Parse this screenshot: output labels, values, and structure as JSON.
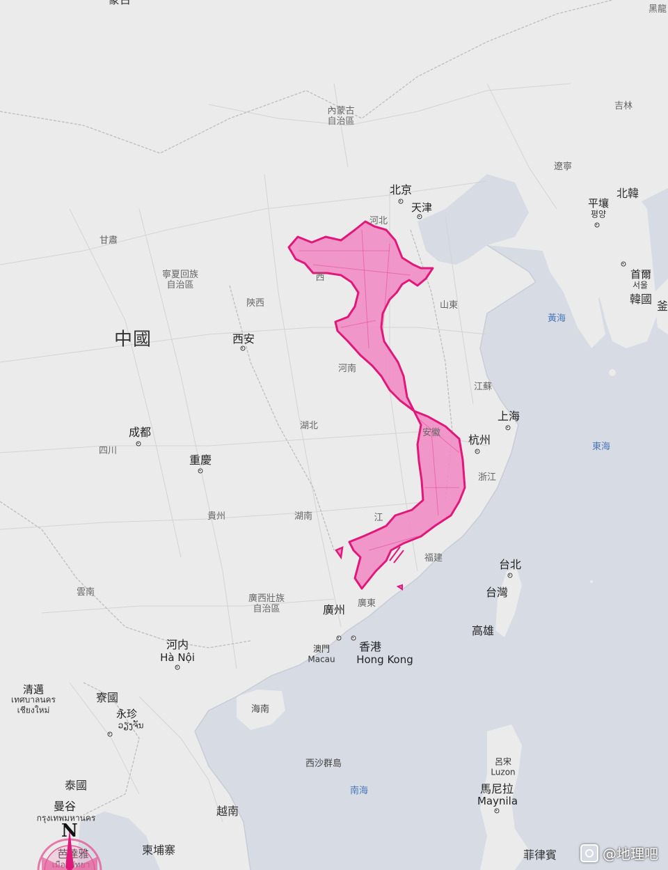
{
  "overlay": {
    "label": "Vietnam outline overlaid on China",
    "fill": "#f08ac4",
    "stroke": "#e0187a"
  },
  "colors": {
    "land": "#ebebeb",
    "sea": "#d6dbe4",
    "roads": "#cfcfcf",
    "borders": "#bdbdbd",
    "sea_label": "#4a79b8"
  },
  "labels": {
    "mongolia": "蒙古",
    "heilongjiang": "黑龍",
    "inner_mongolia_1": "內蒙古",
    "inner_mongolia_2": "自治區",
    "jilin": "吉林",
    "liaoning": "遼寧",
    "north_korea": "北韓",
    "pyongyang": "平壤",
    "pyongyang_kr": "평양",
    "seoul": "首爾",
    "seoul_kr": "서울",
    "south_korea": "韓國",
    "japan_partial": "釜",
    "gansu": "甘肅",
    "ningxia_1": "寧夏回族",
    "ningxia_2": "自治區",
    "shaanxi": "陝西",
    "china": "中國",
    "xian": "西安",
    "beijing": "北京",
    "tianjin": "天津",
    "hebei": "河北",
    "shanxi": "西",
    "shandong": "山東",
    "yellow_sea": "黃海",
    "henan": "河南",
    "jiangsu": "江蘇",
    "shanghai": "上海",
    "anhui": "安徽",
    "hangzhou": "杭州",
    "east_sea": "東海",
    "zhejiang": "浙江",
    "hubei": "湖北",
    "chengdu": "成都",
    "sichuan": "四川",
    "chongqing": "重慶",
    "guizhou": "貴州",
    "hunan": "湖南",
    "jiangxi": "江",
    "fujian": "福建",
    "taipei": "台北",
    "taiwan": "台灣",
    "kaohsiung": "高雄",
    "yunnan": "雲南",
    "guangxi_1": "廣西壯族",
    "guangxi_2": "自治區",
    "guangzhou": "廣州",
    "guangdong": "廣東",
    "macau_zh": "澳門",
    "macau_en": "Macau",
    "hongkong_zh": "香港",
    "hongkong_en": "Hong Kong",
    "hanoi_zh": "河内",
    "hanoi_vi": "Hà Nội",
    "hainan": "海南",
    "chiangmai_zh": "清邁",
    "chiangmai_th_1": "เทศบาลนคร",
    "chiangmai_th_2": "เชียงใหม่",
    "laos": "寮國",
    "vientiane_zh": "永珍",
    "vientiane_lo": "ວຽງຈັນ",
    "paracel": "西沙群島",
    "luzon_zh": "呂宋",
    "luzon_en": "Luzon",
    "thailand": "泰國",
    "bangkok_zh": "曼谷",
    "bangkok_th": "กรุงเทพมหานคร",
    "south_sea": "南海",
    "manila_zh": "馬尼拉",
    "manila_en": "Maynila",
    "vietnam": "越南",
    "pattaya_zh": "芭達雅",
    "pattaya_th": "เมืองพัทยา",
    "cambodia": "柬埔寨",
    "philippines": "菲律賓",
    "compass_n": "N"
  },
  "watermark": {
    "text": "@地理吧",
    "icon": "tieba-paw-icon"
  }
}
